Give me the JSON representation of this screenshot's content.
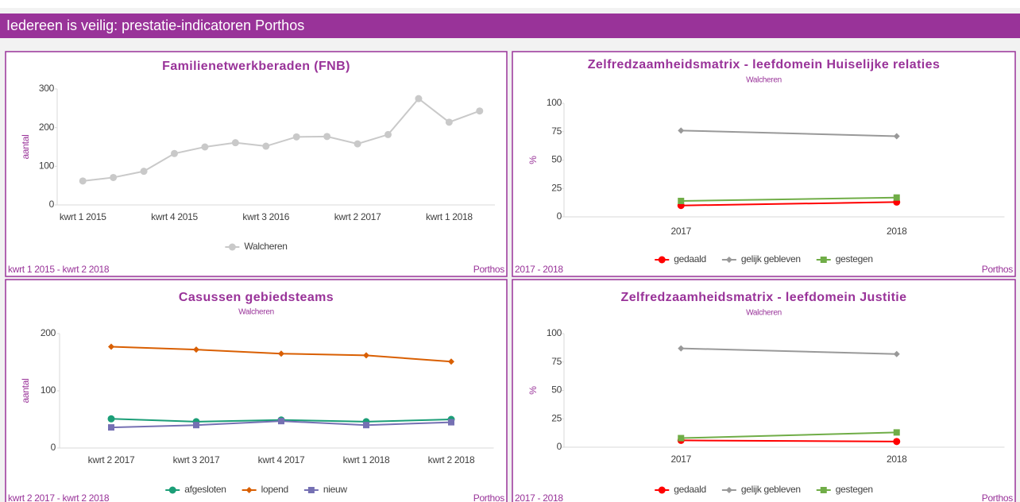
{
  "header": {
    "title": "Iedereen is veilig: prestatie-indicatoren Porthos"
  },
  "chart_data": [
    {
      "type": "line",
      "title": "Familienetwerkberaden (FNB)",
      "ylabel": "aantal",
      "categories": [
        "kwrt 1 2015",
        null,
        null,
        "kwrt 4 2015",
        null,
        null,
        "kwrt 3 2016",
        null,
        null,
        "kwrt 2 2017",
        null,
        null,
        "kwrt 1 2018",
        null
      ],
      "series": [
        {
          "name": "Walcheren",
          "color": "#c9c9c9",
          "marker": "circle",
          "values": [
            62,
            71,
            87,
            133,
            150,
            161,
            152,
            176,
            177,
            158,
            182,
            275,
            214,
            243
          ]
        }
      ],
      "ylim": [
        0,
        300
      ],
      "yticks": [
        0,
        100,
        200,
        300
      ],
      "footer_left": "kwrt 1 2015 - kwrt 2 2018",
      "footer_right": "Porthos"
    },
    {
      "type": "line",
      "title": "Zelfredzaamheidsmatrix - leefdomein Huiselijke relaties",
      "subtitle": "Walcheren",
      "ylabel": "%",
      "categories": [
        "2017",
        "2018"
      ],
      "series": [
        {
          "name": "gedaald",
          "color": "#ff0000",
          "marker": "circle",
          "values": [
            10,
            13
          ]
        },
        {
          "name": "gelijk gebleven",
          "color": "#999999",
          "marker": "diamond",
          "values": [
            76,
            71
          ]
        },
        {
          "name": "gestegen",
          "color": "#70ad47",
          "marker": "square",
          "values": [
            14,
            17
          ]
        }
      ],
      "ylim": [
        0,
        100
      ],
      "yticks": [
        0,
        25,
        50,
        75,
        100
      ],
      "footer_left": "2017 - 2018",
      "footer_right": "Porthos"
    },
    {
      "type": "line",
      "title": "Casussen gebiedsteams",
      "subtitle": "Walcheren",
      "ylabel": "aantal",
      "categories": [
        "kwrt 2 2017",
        "kwrt 3 2017",
        "kwrt 4 2017",
        "kwrt 1 2018",
        "kwrt 2 2018"
      ],
      "series": [
        {
          "name": "afgesloten",
          "color": "#1b9e77",
          "marker": "circle",
          "values": [
            51,
            46,
            49,
            46,
            50
          ]
        },
        {
          "name": "lopend",
          "color": "#d95f02",
          "marker": "diamond",
          "values": [
            177,
            172,
            165,
            162,
            151
          ]
        },
        {
          "name": "nieuw",
          "color": "#7570b3",
          "marker": "square",
          "values": [
            36,
            40,
            47,
            40,
            45
          ]
        }
      ],
      "ylim": [
        0,
        200
      ],
      "yticks": [
        0,
        100,
        200
      ],
      "footer_left": "kwrt 2 2017 - kwrt 2 2018",
      "footer_right": "Porthos"
    },
    {
      "type": "line",
      "title": "Zelfredzaamheidsmatrix - leefdomein Justitie",
      "subtitle": "Walcheren",
      "ylabel": "%",
      "categories": [
        "2017",
        "2018"
      ],
      "series": [
        {
          "name": "gedaald",
          "color": "#ff0000",
          "marker": "circle",
          "values": [
            6,
            5
          ]
        },
        {
          "name": "gelijk gebleven",
          "color": "#999999",
          "marker": "diamond",
          "values": [
            87,
            82
          ]
        },
        {
          "name": "gestegen",
          "color": "#70ad47",
          "marker": "square",
          "values": [
            8,
            13
          ]
        }
      ],
      "ylim": [
        0,
        100
      ],
      "yticks": [
        0,
        25,
        50,
        75,
        100
      ],
      "footer_left": "2017 - 2018",
      "footer_right": "Porthos"
    }
  ]
}
